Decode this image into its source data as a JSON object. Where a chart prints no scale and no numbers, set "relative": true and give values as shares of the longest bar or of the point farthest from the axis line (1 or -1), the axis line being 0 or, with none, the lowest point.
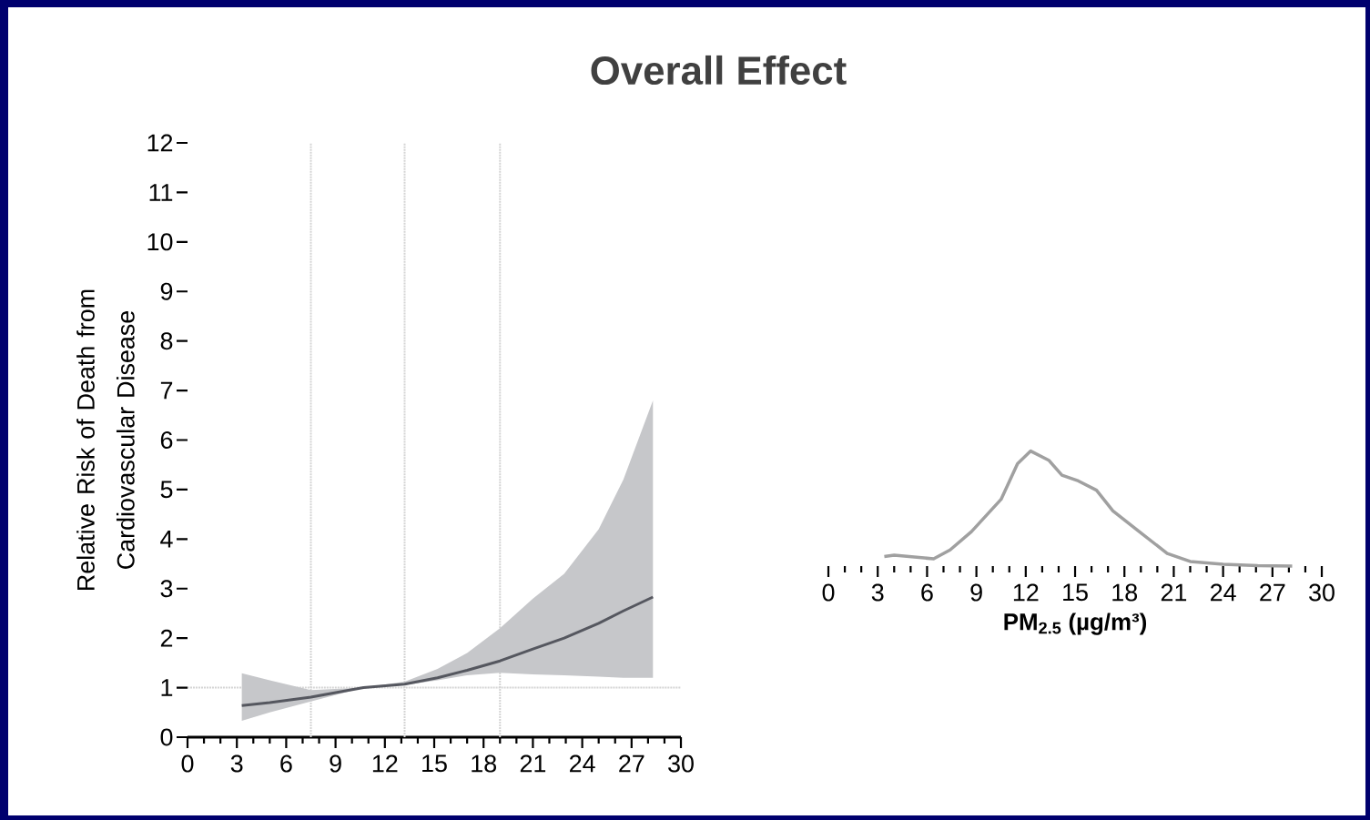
{
  "chart_data": [
    {
      "type": "line",
      "title": "Overall Effect",
      "ylabel": "Relative Risk of Death from Cardiovascular Disease",
      "x": [
        3.3,
        5,
        7.5,
        10.7,
        13.2,
        15.2,
        17,
        19,
        21,
        22.9,
        25,
        26.5,
        28.3
      ],
      "series": [
        {
          "color": "#55575f",
          "values": [
            0.64,
            0.7,
            0.81,
            1.0,
            1.07,
            1.2,
            1.35,
            1.54,
            1.78,
            2.0,
            2.3,
            2.55,
            2.83
          ],
          "lower": [
            0.33,
            0.5,
            0.72,
            1.0,
            1.05,
            1.15,
            1.25,
            1.3,
            1.27,
            1.25,
            1.22,
            1.2,
            1.2
          ],
          "upper": [
            1.29,
            1.15,
            0.95,
            1.0,
            1.12,
            1.38,
            1.7,
            2.2,
            2.8,
            3.3,
            4.2,
            5.2,
            6.8
          ]
        }
      ],
      "xlim": [
        0,
        30
      ],
      "xticks": [
        0,
        3,
        6,
        9,
        12,
        15,
        18,
        21,
        24,
        27,
        30
      ],
      "ylim": [
        0,
        12
      ],
      "yticks": [
        0,
        1,
        2,
        3,
        4,
        5,
        6,
        7,
        8,
        9,
        10,
        11,
        12
      ],
      "ref_lines": [
        {
          "axis": "x",
          "value": 7.5,
          "color": "#d4d4d4",
          "line_style": "dotted"
        },
        {
          "axis": "x",
          "value": 13.2,
          "color": "#d4d4d4",
          "line_style": "dotted"
        },
        {
          "axis": "x",
          "value": 19,
          "color": "#d4d4d4",
          "line_style": "dotted"
        },
        {
          "axis": "y",
          "value": 1,
          "color": "#d4d4d4",
          "line_style": "dotted"
        }
      ]
    },
    {
      "type": "line",
      "relative": true,
      "xlabel": "PM$_{2.5}$ (µg/m³)",
      "tick_labels": "x",
      "x": [
        3.4,
        4.0,
        6.4,
        7.4,
        8.7,
        10.5,
        11.5,
        12.3,
        13.4,
        14.2,
        15.2,
        16.3,
        17.3,
        18.9,
        20.6,
        22.0,
        24.0,
        26.1,
        28.2
      ],
      "values": [
        0.083,
        0.095,
        0.063,
        0.14,
        0.3,
        0.58,
        0.89,
        1,
        0.92,
        0.79,
        0.74,
        0.66,
        0.48,
        0.3,
        0.11,
        0.04,
        0.016,
        0.004,
        0
      ],
      "color": "#a0a0a0",
      "xlim": [
        0,
        30
      ],
      "xticks": [
        0,
        3,
        6,
        9,
        12,
        15,
        18,
        21,
        24,
        27,
        30
      ]
    }
  ]
}
